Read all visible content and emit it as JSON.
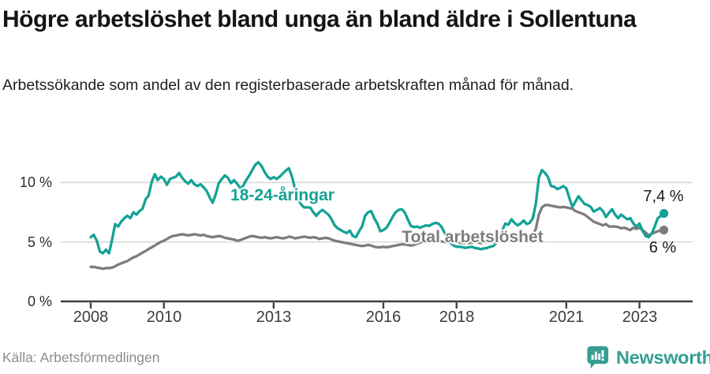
{
  "header": {
    "title": "Högre arbetslöshet bland unga än bland äldre i Sollentuna",
    "subtitle": "Arbetssökande som andel av den registerbaserade arbetskraften månad för månad."
  },
  "footer": {
    "source": "Källa: Arbetsförmedlingen",
    "brand_name": "Newsworthy"
  },
  "colors": {
    "young_line": "#14a296",
    "total_line": "#7c7c7c",
    "grid": "#dadada",
    "axis_line": "#3f3f3f",
    "tick_text": "#3c3c3c",
    "end_label_text": "#1a1a1a",
    "brand_teal": "#359d92",
    "source_text": "#8c8c8c"
  },
  "chart_data": {
    "type": "line",
    "title": "Högre arbetslöshet bland unga än bland äldre i Sollentuna",
    "subtitle": "Arbetssökande som andel av den registerbaserade arbetskraften månad för månad.",
    "x_unit": "month",
    "x_start_year": 2008,
    "x_end": "2023-09",
    "ylim": [
      0,
      12.6
    ],
    "grid": "horizontal",
    "y_ticks": [
      {
        "value": 0,
        "label": "0 %"
      },
      {
        "value": 5,
        "label": "5 %"
      },
      {
        "value": 10,
        "label": "10 %"
      }
    ],
    "x_ticks": [
      {
        "year": 2008,
        "label": "2008"
      },
      {
        "year": 2010,
        "label": "2010"
      },
      {
        "year": 2013,
        "label": "2013"
      },
      {
        "year": 2016,
        "label": "2016"
      },
      {
        "year": 2018,
        "label": "2018"
      },
      {
        "year": 2021,
        "label": "2021"
      },
      {
        "year": 2023,
        "label": "2023"
      }
    ],
    "series": [
      {
        "name": "18-24-åringar",
        "color": "#14a296",
        "end_label": "7,4 %",
        "end_value": 7.4,
        "values": [
          5.4,
          5.6,
          5.1,
          4.2,
          4.05,
          4.35,
          4.05,
          5.2,
          6.5,
          6.3,
          6.7,
          7.0,
          7.2,
          7.0,
          7.5,
          7.3,
          7.6,
          7.8,
          8.6,
          8.9,
          10.05,
          10.7,
          10.2,
          10.5,
          10.3,
          9.8,
          10.3,
          10.4,
          10.5,
          10.8,
          10.4,
          10.1,
          9.9,
          10.2,
          9.85,
          9.7,
          9.85,
          9.6,
          9.3,
          8.75,
          8.3,
          9.0,
          9.95,
          10.3,
          10.6,
          10.4,
          9.95,
          10.2,
          9.9,
          9.55,
          9.7,
          10.2,
          10.6,
          11.05,
          11.5,
          11.7,
          11.4,
          10.9,
          10.5,
          10.3,
          10.45,
          10.3,
          10.5,
          10.75,
          11.0,
          11.2,
          10.5,
          9.5,
          8.6,
          8.15,
          7.9,
          7.9,
          7.9,
          7.5,
          7.2,
          7.5,
          7.7,
          7.5,
          7.3,
          6.9,
          6.4,
          6.15,
          6.0,
          5.85,
          5.75,
          5.95,
          5.5,
          5.4,
          5.9,
          6.3,
          7.2,
          7.5,
          7.6,
          7.0,
          6.55,
          5.9,
          6.0,
          6.2,
          6.6,
          7.1,
          7.5,
          7.7,
          7.75,
          7.5,
          6.9,
          6.35,
          6.25,
          6.3,
          6.2,
          6.3,
          6.4,
          6.35,
          6.5,
          6.6,
          6.55,
          6.3,
          5.8,
          5.3,
          4.9,
          4.7,
          4.6,
          4.6,
          4.55,
          4.5,
          4.55,
          4.6,
          4.5,
          4.45,
          4.4,
          4.45,
          4.5,
          4.6,
          4.65,
          4.9,
          5.4,
          6.0,
          6.55,
          6.45,
          6.9,
          6.6,
          6.4,
          6.55,
          6.8,
          6.5,
          6.6,
          7.0,
          8.2,
          10.4,
          11.05,
          10.8,
          10.45,
          9.7,
          9.65,
          9.45,
          9.55,
          9.7,
          9.5,
          8.7,
          7.95,
          8.4,
          8.85,
          8.5,
          8.2,
          8.1,
          7.95,
          7.55,
          7.7,
          7.85,
          7.6,
          7.1,
          7.45,
          7.75,
          7.3,
          7.0,
          7.3,
          7.1,
          6.9,
          7.0,
          6.55,
          6.3,
          6.55,
          5.95,
          5.5,
          5.4,
          5.7,
          6.3,
          7.0,
          7.2,
          7.4
        ]
      },
      {
        "name": "Total arbetslöshet",
        "color": "#7c7c7c",
        "end_label": "6 %",
        "end_value": 6.0,
        "values": [
          2.9,
          2.9,
          2.85,
          2.8,
          2.75,
          2.8,
          2.8,
          2.85,
          2.95,
          3.1,
          3.2,
          3.3,
          3.4,
          3.55,
          3.7,
          3.8,
          3.95,
          4.1,
          4.25,
          4.4,
          4.55,
          4.7,
          4.85,
          5.0,
          5.1,
          5.25,
          5.4,
          5.5,
          5.55,
          5.6,
          5.65,
          5.6,
          5.55,
          5.6,
          5.65,
          5.6,
          5.55,
          5.6,
          5.5,
          5.45,
          5.4,
          5.45,
          5.5,
          5.45,
          5.35,
          5.3,
          5.25,
          5.2,
          5.1,
          5.15,
          5.25,
          5.35,
          5.45,
          5.5,
          5.45,
          5.4,
          5.35,
          5.4,
          5.35,
          5.3,
          5.35,
          5.4,
          5.35,
          5.3,
          5.35,
          5.45,
          5.4,
          5.3,
          5.35,
          5.4,
          5.45,
          5.4,
          5.35,
          5.4,
          5.35,
          5.25,
          5.3,
          5.35,
          5.3,
          5.2,
          5.1,
          5.05,
          5.0,
          4.95,
          4.9,
          4.85,
          4.8,
          4.75,
          4.7,
          4.65,
          4.7,
          4.75,
          4.7,
          4.6,
          4.55,
          4.55,
          4.6,
          4.55,
          4.6,
          4.65,
          4.7,
          4.75,
          4.8,
          4.8,
          4.75,
          4.7,
          4.75,
          4.85,
          4.95,
          5.0,
          5.0,
          5.05,
          5.0,
          5.05,
          5.1,
          5.05,
          5.0,
          4.95,
          5.0,
          5.0,
          5.0,
          4.95,
          4.9,
          4.95,
          4.9,
          4.95,
          5.0,
          4.95,
          4.9,
          4.95,
          5.0,
          5.0,
          5.0,
          5.05,
          5.1,
          5.1,
          5.15,
          5.2,
          5.25,
          5.2,
          5.25,
          5.3,
          5.4,
          5.5,
          5.55,
          5.6,
          6.1,
          7.3,
          7.9,
          8.1,
          8.1,
          8.05,
          8.0,
          7.95,
          7.9,
          7.95,
          7.9,
          7.85,
          7.8,
          7.6,
          7.5,
          7.4,
          7.3,
          7.1,
          6.9,
          6.7,
          6.6,
          6.5,
          6.4,
          6.5,
          6.3,
          6.3,
          6.3,
          6.25,
          6.15,
          6.2,
          6.1,
          6.0,
          6.2,
          6.1,
          6.2,
          6.0,
          5.8,
          5.55,
          5.7,
          5.8,
          5.9,
          5.95,
          6.0
        ]
      }
    ]
  }
}
